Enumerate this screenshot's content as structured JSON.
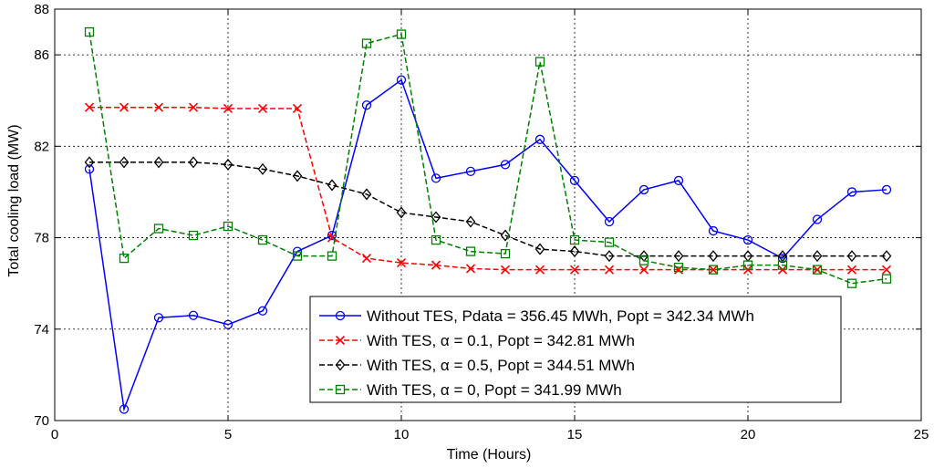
{
  "chart_data": {
    "type": "line",
    "title": "",
    "xlabel": "Time (Hours)",
    "ylabel": "Total cooling load (MW)",
    "xlim": [
      0,
      25
    ],
    "ylim": [
      70,
      88
    ],
    "xticks": [
      0,
      5,
      10,
      15,
      20,
      25
    ],
    "yticks": [
      70,
      74,
      78,
      82,
      86,
      88
    ],
    "xtick_labels": [
      "0",
      "5",
      "10",
      "15",
      "20",
      "25"
    ],
    "ytick_labels": [
      "70",
      "74",
      "78",
      "82",
      "86",
      "88"
    ],
    "grid": true,
    "legend_position": "bottom-center",
    "x": [
      1,
      2,
      3,
      4,
      5,
      6,
      7,
      8,
      9,
      10,
      11,
      12,
      13,
      14,
      15,
      16,
      17,
      18,
      19,
      20,
      21,
      22,
      23,
      24
    ],
    "series": [
      {
        "name": "Without TES, Pdata = 356.45 MWh, Popt = 342.34 MWh",
        "color": "#0000ff",
        "dash": "solid",
        "marker": "circle",
        "values": [
          81.0,
          70.5,
          74.5,
          74.6,
          74.2,
          74.8,
          77.4,
          78.1,
          83.8,
          84.9,
          80.6,
          80.9,
          81.2,
          82.3,
          80.5,
          78.7,
          80.1,
          80.5,
          78.3,
          77.9,
          77.1,
          78.8,
          80.0,
          80.1
        ]
      },
      {
        "name": "With TES, α = 0.1, Popt = 342.81 MWh",
        "color": "#ff0000",
        "dash": "dashed",
        "marker": "x",
        "values": [
          83.7,
          83.7,
          83.7,
          83.7,
          83.65,
          83.65,
          83.65,
          78.0,
          77.1,
          76.9,
          76.8,
          76.65,
          76.6,
          76.6,
          76.6,
          76.6,
          76.6,
          76.6,
          76.6,
          76.6,
          76.6,
          76.6,
          76.6,
          76.6
        ]
      },
      {
        "name": "With TES, α = 0.5, Popt = 344.51 MWh",
        "color": "#000000",
        "dash": "dashed",
        "marker": "diamond",
        "values": [
          81.3,
          81.3,
          81.3,
          81.3,
          81.2,
          81.0,
          80.7,
          80.3,
          79.9,
          79.1,
          78.9,
          78.7,
          78.1,
          77.5,
          77.4,
          77.2,
          77.2,
          77.2,
          77.2,
          77.2,
          77.2,
          77.2,
          77.2,
          77.2
        ]
      },
      {
        "name": "With TES, α = 0, Popt = 341.99 MWh",
        "color": "#008000",
        "dash": "dashed",
        "marker": "square",
        "values": [
          87.0,
          77.1,
          78.4,
          78.1,
          78.5,
          77.9,
          77.2,
          77.2,
          86.5,
          86.9,
          77.9,
          77.4,
          77.3,
          85.7,
          77.9,
          77.8,
          77.0,
          76.7,
          76.6,
          76.8,
          76.8,
          76.6,
          76.0,
          76.2
        ]
      }
    ]
  }
}
